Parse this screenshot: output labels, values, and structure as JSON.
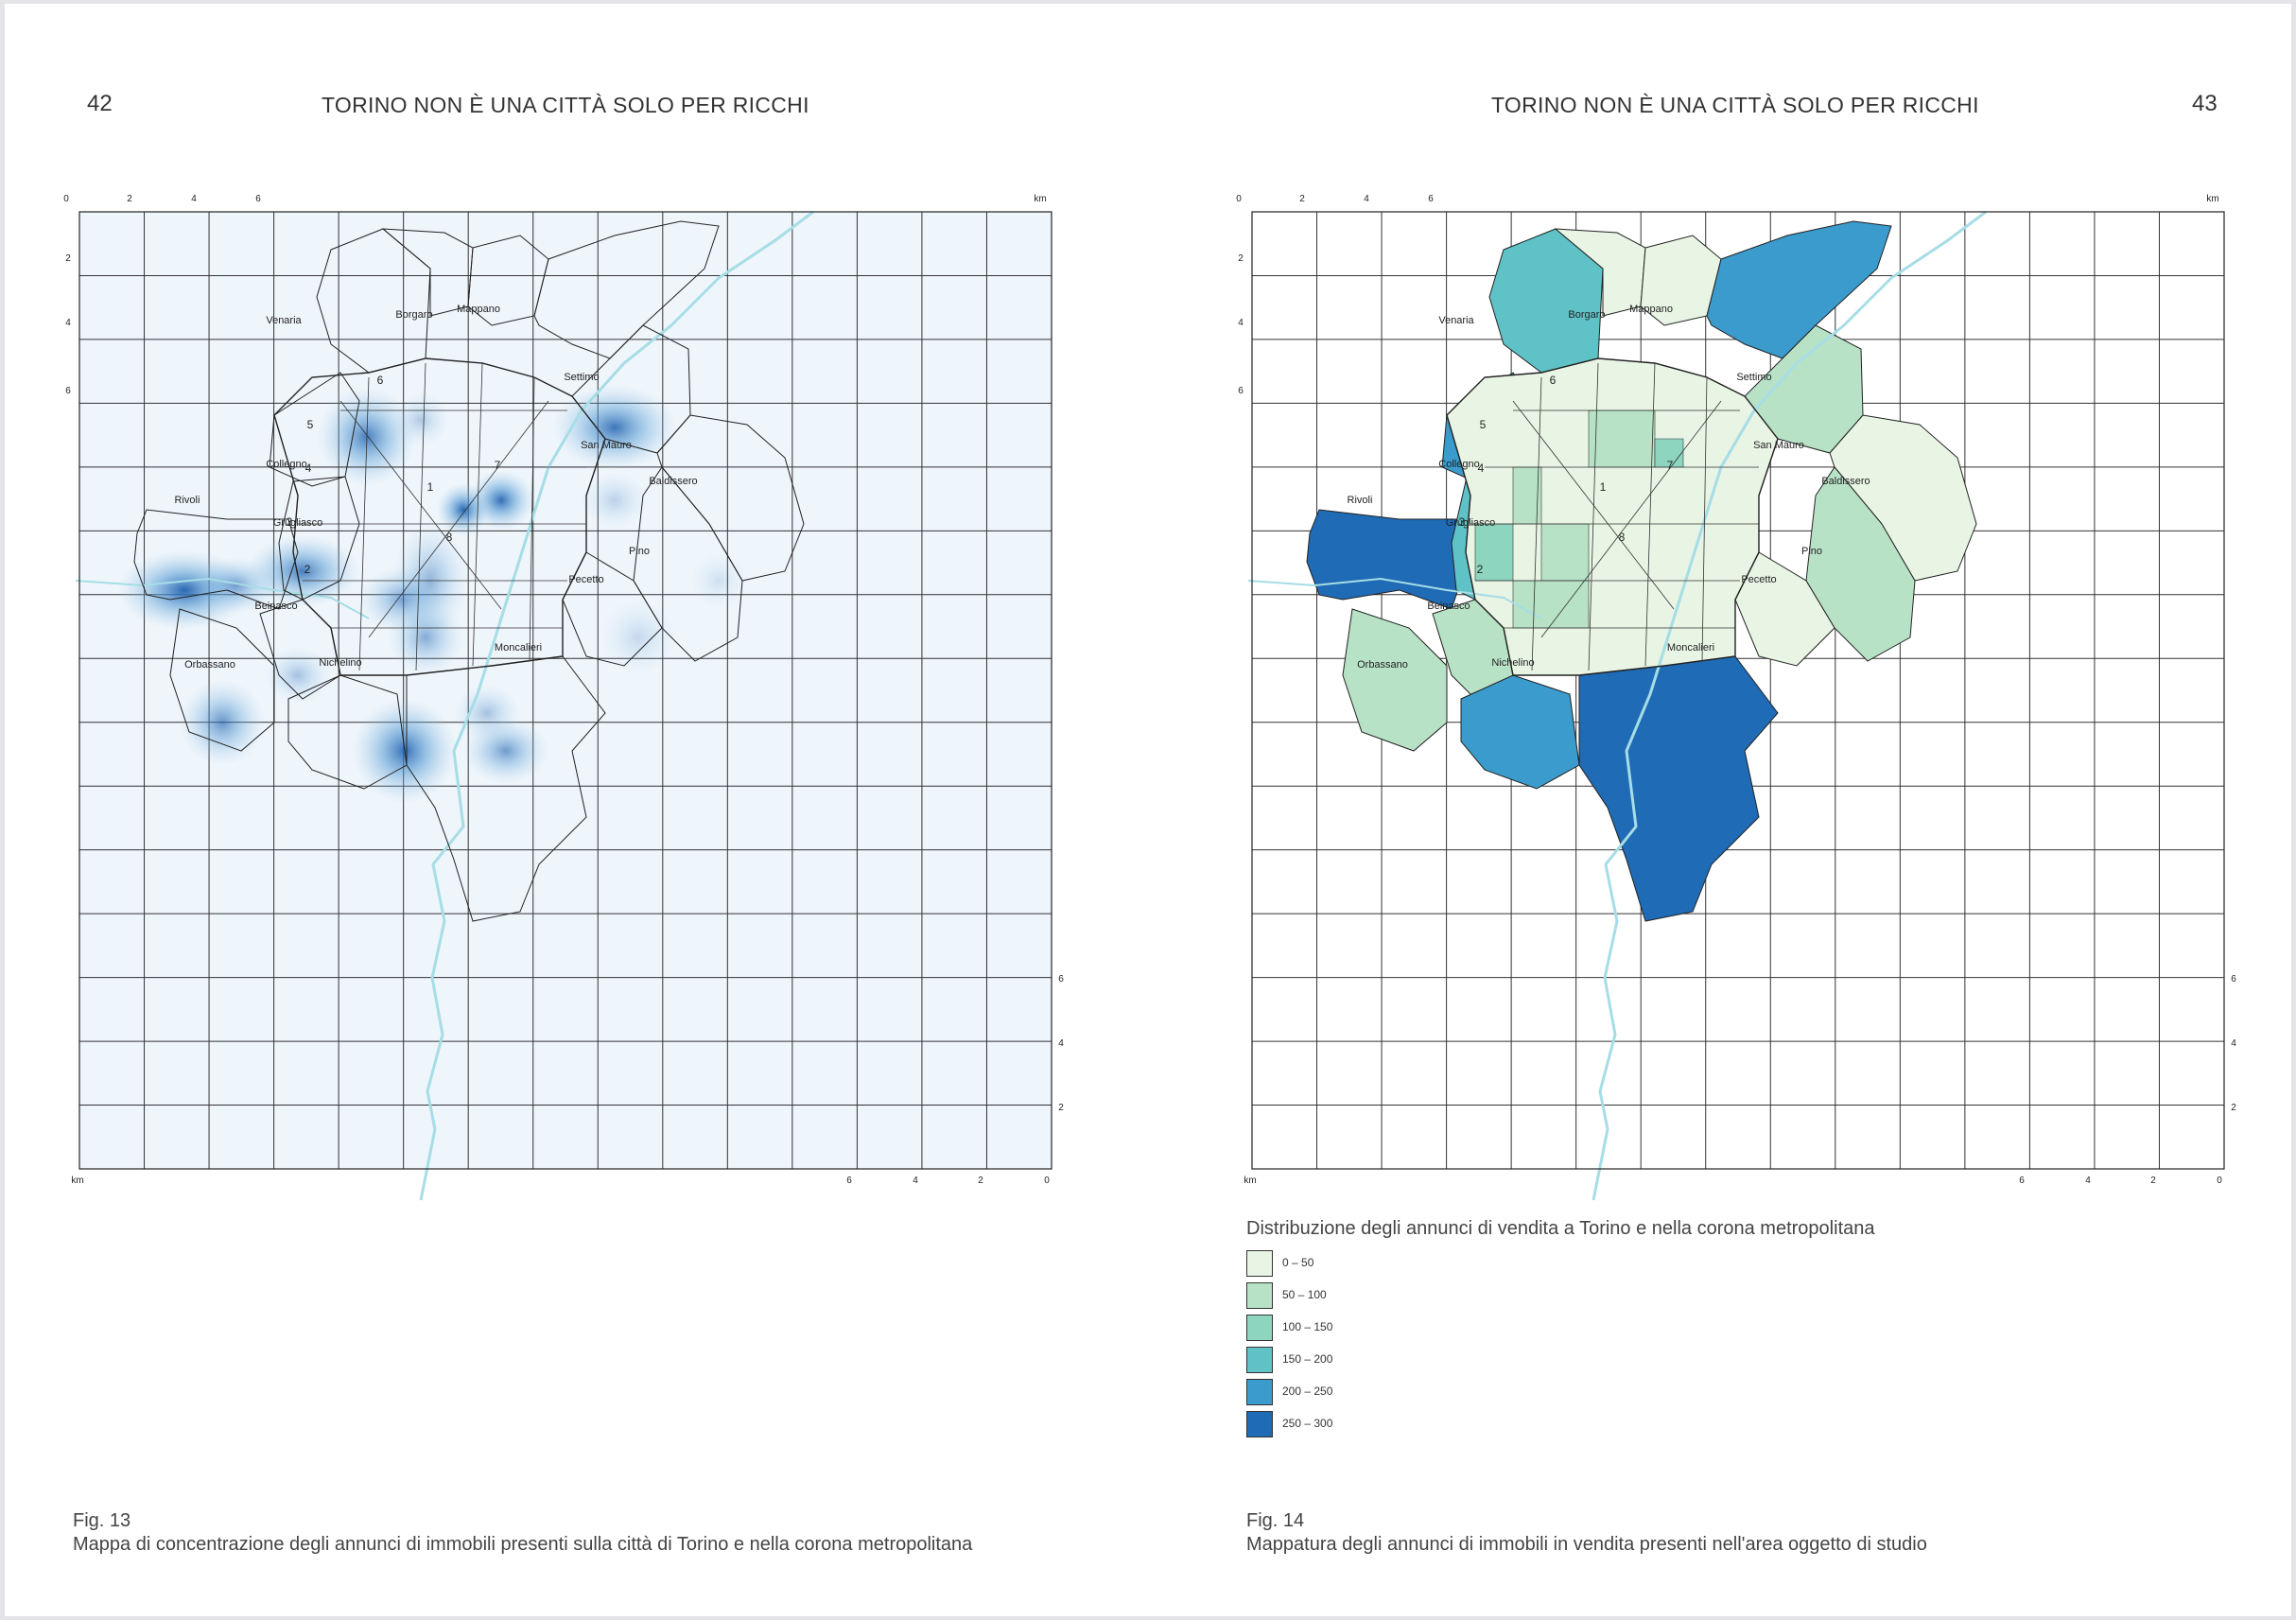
{
  "left_page": {
    "page_number": "42",
    "running_head": "TORINO NON È UNA CITTÀ SOLO PER RICCHI",
    "figure_label": "Fig. 13",
    "caption": "Mappa di concentrazione degli annunci di immobili presenti sulla città di Torino e nella corona metropolitana"
  },
  "right_page": {
    "page_number": "43",
    "running_head": "TORINO NON È UNA CITTÀ SOLO PER RICCHI",
    "figure_label": "Fig. 14",
    "caption": "Mappatura degli annunci di immobili in vendita presenti nell'area oggetto di studio"
  },
  "scale": {
    "top_ticks": [
      "0",
      "2",
      "4",
      "6",
      "km"
    ],
    "left_ticks": [
      "2",
      "4",
      "6"
    ],
    "right_ticks": [
      "6",
      "4",
      "2"
    ],
    "bottom_ticks": [
      "km",
      "6",
      "4",
      "2",
      "0"
    ]
  },
  "districts": [
    "1",
    "2",
    "3",
    "4",
    "5",
    "6",
    "7",
    "8"
  ],
  "municipalities": {
    "venaria": "Venaria",
    "borgaro": "Borgaro",
    "mappano": "Mappano",
    "settimo": "Settimo",
    "san_mauro": "San Mauro",
    "baldissero": "Baldissero",
    "collegno": "Collegno",
    "rivoli": "Rivoli",
    "grugliasco": "Grugliasco",
    "pino": "Pino",
    "pecetto": "Pecetto",
    "beinasco": "Beinasco",
    "orbassano": "Orbassano",
    "nichelino": "Nichelino",
    "moncalieri": "Moncalieri"
  },
  "legend": {
    "title": "Distribuzione degli annunci di vendita a Torino e nella corona metropolitana",
    "classes": [
      {
        "label": "0 – 50",
        "color": "#e8f4e4"
      },
      {
        "label": "50 – 100",
        "color": "#b8e2c6"
      },
      {
        "label": "100 – 150",
        "color": "#8ed5c0"
      },
      {
        "label": "150 – 200",
        "color": "#5ec2c6"
      },
      {
        "label": "200 – 250",
        "color": "#3a9bcc"
      },
      {
        "label": "250 – 300",
        "color": "#1f6bb5"
      }
    ]
  },
  "municipality_class": {
    "venaria": 3,
    "borgaro": 0,
    "mappano": 0,
    "settimo": 4,
    "san_mauro": 1,
    "baldissero": 0,
    "collegno": 4,
    "rivoli": 5,
    "grugliasco": 3,
    "pino": 1,
    "pecetto": 0,
    "beinasco": 1,
    "orbassano": 1,
    "nichelino": 4,
    "moncalieri": 5,
    "torino": 0
  },
  "colors": {
    "heat_background": "#eef5fb",
    "heat_hot": "#1f5fae",
    "river": "#a6dde6",
    "grid": "#222222"
  }
}
